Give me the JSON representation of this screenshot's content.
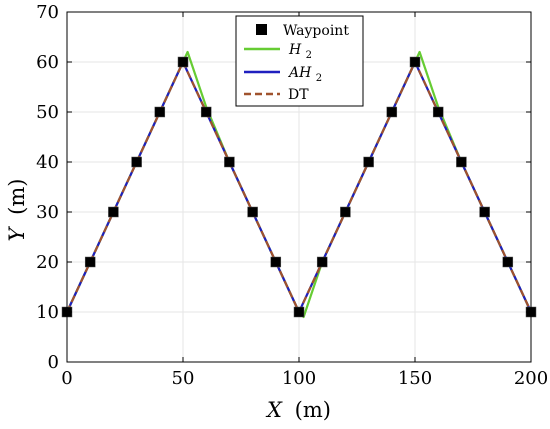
{
  "chart_data": {
    "type": "line",
    "xlabel_var": "X",
    "xlabel_unit": "(m)",
    "ylabel_var": "Y",
    "ylabel_unit": "(m)",
    "xlim": [
      0,
      200
    ],
    "ylim": [
      0,
      70
    ],
    "xticks": [
      0,
      50,
      100,
      150,
      200
    ],
    "yticks": [
      0,
      10,
      20,
      30,
      40,
      50,
      60,
      70
    ],
    "grid": true,
    "legend_position": "top-center",
    "legend": {
      "waypoint": "Waypoint",
      "h2_base": "H",
      "h2_sub": "2",
      "ah2_base": "AH",
      "ah2_sub": "2",
      "dt": "DT"
    },
    "waypoints": {
      "x": [
        0,
        10,
        20,
        30,
        40,
        50,
        60,
        70,
        80,
        90,
        100,
        110,
        120,
        130,
        140,
        150,
        160,
        170,
        180,
        190,
        200
      ],
      "y": [
        10,
        20,
        30,
        40,
        50,
        60,
        50,
        40,
        30,
        20,
        10,
        20,
        30,
        40,
        50,
        60,
        50,
        40,
        30,
        20,
        10
      ]
    },
    "series": [
      {
        "name": "H2",
        "color": "#66cc33",
        "style": "solid",
        "x": [
          0,
          10,
          20,
          30,
          40,
          50,
          52,
          60,
          70,
          80,
          90,
          100,
          102,
          110,
          120,
          130,
          140,
          150,
          152,
          160,
          170,
          180,
          190,
          200
        ],
        "y": [
          10,
          20,
          30,
          40,
          50,
          60,
          62,
          51,
          40,
          30,
          20,
          10,
          9,
          20,
          30,
          40,
          50,
          60,
          62,
          51,
          40,
          30,
          20,
          10
        ]
      },
      {
        "name": "AH2",
        "color": "#1f1fbf",
        "style": "solid",
        "x": [
          0,
          10,
          20,
          30,
          40,
          50,
          60,
          70,
          80,
          90,
          100,
          110,
          120,
          130,
          140,
          150,
          160,
          170,
          180,
          190,
          200
        ],
        "y": [
          10,
          20,
          30,
          40,
          50,
          60,
          50,
          40,
          30,
          20,
          10,
          20,
          30,
          40,
          50,
          60,
          50,
          40,
          30,
          20,
          10
        ]
      },
      {
        "name": "DT",
        "color": "#a0522d",
        "style": "dashed",
        "x": [
          0,
          10,
          20,
          30,
          40,
          50,
          60,
          70,
          80,
          90,
          100,
          110,
          120,
          130,
          140,
          150,
          160,
          170,
          180,
          190,
          200
        ],
        "y": [
          10,
          20,
          30,
          40,
          50,
          60,
          50,
          40,
          30,
          20,
          10,
          20,
          30,
          40,
          50,
          60,
          50,
          40,
          30,
          20,
          10
        ]
      }
    ],
    "colors": {
      "axis": "#000000",
      "grid": "#e6e6e6",
      "marker": "#000000",
      "marker_edge": "#555555"
    }
  }
}
